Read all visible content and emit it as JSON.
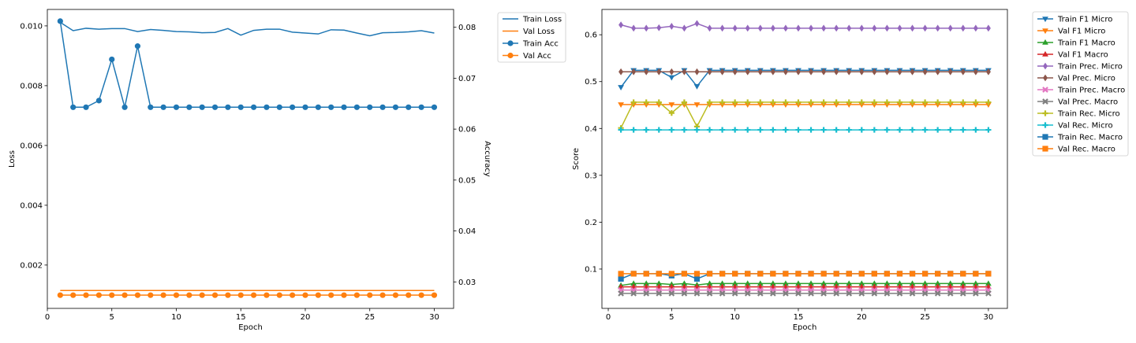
{
  "chart_data": [
    {
      "type": "line",
      "xlabel": "Epoch",
      "ylabel": "Loss",
      "y2label": "Accuracy",
      "x": [
        1,
        2,
        3,
        4,
        5,
        6,
        7,
        8,
        9,
        10,
        11,
        12,
        13,
        14,
        15,
        16,
        17,
        18,
        19,
        20,
        21,
        22,
        23,
        24,
        25,
        26,
        27,
        28,
        29,
        30
      ],
      "xlim": [
        0,
        31.5
      ],
      "ylim": [
        0.00055,
        0.01055
      ],
      "y2lim": [
        0.0248,
        0.0835
      ],
      "xticks": [
        0,
        5,
        10,
        15,
        20,
        25,
        30
      ],
      "yticks": [
        0.002,
        0.004,
        0.006,
        0.008,
        0.01
      ],
      "y2ticks": [
        0.03,
        0.04,
        0.05,
        0.06,
        0.07,
        0.08
      ],
      "legend_position": "outside top-right",
      "series": [
        {
          "name": "Train Loss",
          "axis": "left",
          "color": "#1f77b4",
          "marker": "none",
          "values": [
            0.01012,
            0.00984,
            0.00992,
            0.00989,
            0.00991,
            0.00991,
            0.00981,
            0.00988,
            0.00985,
            0.00981,
            0.0098,
            0.00977,
            0.00978,
            0.00991,
            0.00969,
            0.00985,
            0.00989,
            0.00989,
            0.00979,
            0.00976,
            0.00973,
            0.00987,
            0.00986,
            0.00976,
            0.00967,
            0.00977,
            0.00978,
            0.0098,
            0.00984,
            0.00976
          ]
        },
        {
          "name": "Val Loss",
          "axis": "left",
          "color": "#ff7f0e",
          "marker": "none",
          "values": [
            0.00115,
            0.00115,
            0.00115,
            0.00115,
            0.00115,
            0.00115,
            0.00115,
            0.00115,
            0.00115,
            0.00115,
            0.00115,
            0.00115,
            0.00115,
            0.00115,
            0.00115,
            0.00115,
            0.00115,
            0.00115,
            0.00115,
            0.00115,
            0.00115,
            0.00115,
            0.00115,
            0.00115,
            0.00115,
            0.00115,
            0.00115,
            0.00115,
            0.00115,
            0.00115
          ]
        },
        {
          "name": "Train Acc",
          "axis": "right",
          "color": "#1f77b4",
          "marker": "circle",
          "values": [
            0.0812,
            0.0643,
            0.0643,
            0.0656,
            0.0737,
            0.0643,
            0.0763,
            0.0643,
            0.0643,
            0.0643,
            0.0643,
            0.0643,
            0.0643,
            0.0643,
            0.0643,
            0.0643,
            0.0643,
            0.0643,
            0.0643,
            0.0643,
            0.0643,
            0.0643,
            0.0643,
            0.0643,
            0.0643,
            0.0643,
            0.0643,
            0.0643,
            0.0643,
            0.0643
          ]
        },
        {
          "name": "Val Acc",
          "axis": "right",
          "color": "#ff7f0e",
          "marker": "circle",
          "values": [
            0.0274,
            0.0274,
            0.0274,
            0.0274,
            0.0274,
            0.0274,
            0.0274,
            0.0274,
            0.0274,
            0.0274,
            0.0274,
            0.0274,
            0.0274,
            0.0274,
            0.0274,
            0.0274,
            0.0274,
            0.0274,
            0.0274,
            0.0274,
            0.0274,
            0.0274,
            0.0274,
            0.0274,
            0.0274,
            0.0274,
            0.0274,
            0.0274,
            0.0274,
            0.0274
          ]
        }
      ]
    },
    {
      "type": "line",
      "xlabel": "Epoch",
      "ylabel": "Score",
      "x": [
        1,
        2,
        3,
        4,
        5,
        6,
        7,
        8,
        9,
        10,
        11,
        12,
        13,
        14,
        15,
        16,
        17,
        18,
        19,
        20,
        21,
        22,
        23,
        24,
        25,
        26,
        27,
        28,
        29,
        30
      ],
      "xlim": [
        -0.5,
        31.5
      ],
      "ylim": [
        0.016,
        0.654
      ],
      "xticks": [
        0,
        5,
        10,
        15,
        20,
        25,
        30
      ],
      "yticks": [
        0.1,
        0.2,
        0.3,
        0.4,
        0.5,
        0.6
      ],
      "legend_position": "outside top-right",
      "series": [
        {
          "name": "Train F1 Micro",
          "color": "#1f77b4",
          "marker": "triangle-down",
          "values": [
            0.488,
            0.524,
            0.524,
            0.524,
            0.509,
            0.524,
            0.49,
            0.524,
            0.524,
            0.524,
            0.524,
            0.524,
            0.524,
            0.524,
            0.524,
            0.524,
            0.524,
            0.524,
            0.524,
            0.524,
            0.524,
            0.524,
            0.524,
            0.524,
            0.524,
            0.524,
            0.524,
            0.524,
            0.524,
            0.524
          ]
        },
        {
          "name": "Val F1 Micro",
          "color": "#ff7f0e",
          "marker": "triangle-down",
          "values": [
            0.451,
            0.451,
            0.451,
            0.451,
            0.451,
            0.451,
            0.451,
            0.451,
            0.451,
            0.451,
            0.451,
            0.451,
            0.451,
            0.451,
            0.451,
            0.451,
            0.451,
            0.451,
            0.451,
            0.451,
            0.451,
            0.451,
            0.451,
            0.451,
            0.451,
            0.451,
            0.451,
            0.451,
            0.451,
            0.451
          ]
        },
        {
          "name": "Train F1 Macro",
          "color": "#2ca02c",
          "marker": "triangle-up",
          "values": [
            0.065,
            0.069,
            0.069,
            0.069,
            0.067,
            0.069,
            0.066,
            0.069,
            0.069,
            0.069,
            0.069,
            0.069,
            0.069,
            0.069,
            0.069,
            0.069,
            0.069,
            0.069,
            0.069,
            0.069,
            0.069,
            0.069,
            0.069,
            0.069,
            0.069,
            0.069,
            0.069,
            0.069,
            0.069,
            0.069
          ]
        },
        {
          "name": "Val F1 Macro",
          "color": "#d62728",
          "marker": "triangle-up",
          "values": [
            0.062,
            0.062,
            0.062,
            0.062,
            0.062,
            0.062,
            0.062,
            0.062,
            0.062,
            0.062,
            0.062,
            0.062,
            0.062,
            0.062,
            0.062,
            0.062,
            0.062,
            0.062,
            0.062,
            0.062,
            0.062,
            0.062,
            0.062,
            0.062,
            0.062,
            0.062,
            0.062,
            0.062,
            0.062,
            0.062
          ]
        },
        {
          "name": "Train Prec. Micro",
          "color": "#9467bd",
          "marker": "diamond",
          "values": [
            0.621,
            0.614,
            0.614,
            0.615,
            0.618,
            0.614,
            0.624,
            0.614,
            0.614,
            0.614,
            0.614,
            0.614,
            0.614,
            0.614,
            0.614,
            0.614,
            0.614,
            0.614,
            0.614,
            0.614,
            0.614,
            0.614,
            0.614,
            0.614,
            0.614,
            0.614,
            0.614,
            0.614,
            0.614,
            0.614
          ]
        },
        {
          "name": "Val Prec. Micro",
          "color": "#8c564b",
          "marker": "diamond",
          "values": [
            0.521,
            0.521,
            0.521,
            0.521,
            0.521,
            0.521,
            0.521,
            0.521,
            0.521,
            0.521,
            0.521,
            0.521,
            0.521,
            0.521,
            0.521,
            0.521,
            0.521,
            0.521,
            0.521,
            0.521,
            0.521,
            0.521,
            0.521,
            0.521,
            0.521,
            0.521,
            0.521,
            0.521,
            0.521,
            0.521
          ]
        },
        {
          "name": "Train Prec. Macro",
          "color": "#e377c2",
          "marker": "x",
          "values": [
            0.055,
            0.055,
            0.055,
            0.055,
            0.055,
            0.055,
            0.055,
            0.055,
            0.055,
            0.055,
            0.055,
            0.055,
            0.055,
            0.055,
            0.055,
            0.055,
            0.055,
            0.055,
            0.055,
            0.055,
            0.055,
            0.055,
            0.055,
            0.055,
            0.055,
            0.055,
            0.055,
            0.055,
            0.055,
            0.055
          ]
        },
        {
          "name": "Val Prec. Macro",
          "color": "#7f7f7f",
          "marker": "x",
          "values": [
            0.048,
            0.048,
            0.048,
            0.048,
            0.048,
            0.048,
            0.048,
            0.048,
            0.048,
            0.048,
            0.048,
            0.048,
            0.048,
            0.048,
            0.048,
            0.048,
            0.048,
            0.048,
            0.048,
            0.048,
            0.048,
            0.048,
            0.048,
            0.048,
            0.048,
            0.048,
            0.048,
            0.048,
            0.048,
            0.048
          ]
        },
        {
          "name": "Train Rec. Micro",
          "color": "#bcbd22",
          "marker": "plus",
          "values": [
            0.401,
            0.456,
            0.456,
            0.456,
            0.433,
            0.456,
            0.404,
            0.456,
            0.456,
            0.456,
            0.456,
            0.456,
            0.456,
            0.456,
            0.456,
            0.456,
            0.456,
            0.456,
            0.456,
            0.456,
            0.456,
            0.456,
            0.456,
            0.456,
            0.456,
            0.456,
            0.456,
            0.456,
            0.456,
            0.456
          ]
        },
        {
          "name": "Val Rec. Micro",
          "color": "#17becf",
          "marker": "plus",
          "values": [
            0.397,
            0.397,
            0.397,
            0.397,
            0.397,
            0.397,
            0.397,
            0.397,
            0.397,
            0.397,
            0.397,
            0.397,
            0.397,
            0.397,
            0.397,
            0.397,
            0.397,
            0.397,
            0.397,
            0.397,
            0.397,
            0.397,
            0.397,
            0.397,
            0.397,
            0.397,
            0.397,
            0.397,
            0.397,
            0.397
          ]
        },
        {
          "name": "Train Rec. Macro",
          "color": "#1f77b4",
          "marker": "square",
          "values": [
            0.079,
            0.09,
            0.09,
            0.09,
            0.086,
            0.09,
            0.079,
            0.09,
            0.09,
            0.09,
            0.09,
            0.09,
            0.09,
            0.09,
            0.09,
            0.09,
            0.09,
            0.09,
            0.09,
            0.09,
            0.09,
            0.09,
            0.09,
            0.09,
            0.09,
            0.09,
            0.09,
            0.09,
            0.09,
            0.09
          ]
        },
        {
          "name": "Val Rec. Macro",
          "color": "#ff7f0e",
          "marker": "square",
          "values": [
            0.09,
            0.09,
            0.09,
            0.09,
            0.09,
            0.09,
            0.09,
            0.09,
            0.09,
            0.09,
            0.09,
            0.09,
            0.09,
            0.09,
            0.09,
            0.09,
            0.09,
            0.09,
            0.09,
            0.09,
            0.09,
            0.09,
            0.09,
            0.09,
            0.09,
            0.09,
            0.09,
            0.09,
            0.09,
            0.09
          ]
        }
      ]
    }
  ]
}
